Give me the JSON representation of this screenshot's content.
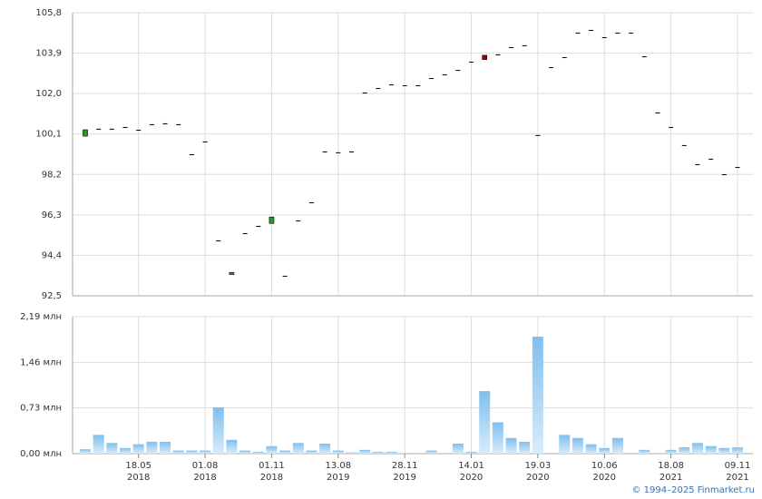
{
  "chart_data": [
    {
      "type": "candlestick",
      "open": [
        100.0,
        100.35,
        100.35,
        100.43,
        100.3,
        100.56,
        100.6,
        100.56,
        99.15,
        99.75,
        95.1,
        93.5,
        95.44,
        95.78,
        95.9,
        93.44,
        96.04,
        96.89,
        99.28,
        99.24,
        99.28,
        102.05,
        102.26,
        102.43,
        102.39,
        102.39,
        102.73,
        102.9,
        103.11,
        103.5,
        103.8,
        103.84,
        104.18,
        104.27,
        100.05,
        103.24,
        103.71,
        104.86,
        104.99,
        104.65,
        104.86,
        104.86,
        103.75,
        101.11,
        100.43,
        99.58,
        98.68,
        98.94,
        98.21,
        98.55
      ],
      "close": [
        100.3,
        100.35,
        100.35,
        100.43,
        100.3,
        100.56,
        100.6,
        100.56,
        99.15,
        99.75,
        95.1,
        93.6,
        95.44,
        95.78,
        96.2,
        93.44,
        96.04,
        96.89,
        99.28,
        99.24,
        99.28,
        102.05,
        102.26,
        102.43,
        102.39,
        102.39,
        102.73,
        102.9,
        103.11,
        103.5,
        103.6,
        103.84,
        104.18,
        104.27,
        100.05,
        103.24,
        103.71,
        104.86,
        104.99,
        104.65,
        104.86,
        104.86,
        103.75,
        101.11,
        100.43,
        99.58,
        98.68,
        98.94,
        98.21,
        98.55
      ],
      "up_color": "#1f9e1f",
      "down_color": "#a00000",
      "flat_color": "#000000",
      "ylim": [
        92.5,
        105.8
      ],
      "yticks": [
        {
          "value": 92.5,
          "label": "92,5"
        },
        {
          "value": 94.4,
          "label": "94,4"
        },
        {
          "value": 96.3,
          "label": "96,3"
        },
        {
          "value": 98.2,
          "label": "98,2"
        },
        {
          "value": 100.1,
          "label": "100,1"
        },
        {
          "value": 102.0,
          "label": "102,0"
        },
        {
          "value": 103.9,
          "label": "103,9"
        },
        {
          "value": 105.8,
          "label": "105,8"
        }
      ],
      "grid": true
    },
    {
      "type": "bar",
      "categories": [
        null,
        null,
        null,
        null,
        "18.05\n2018",
        null,
        null,
        null,
        null,
        "01.08\n2018",
        null,
        null,
        null,
        null,
        "01.11\n2018",
        null,
        null,
        null,
        null,
        "13.08\n2019",
        null,
        null,
        null,
        null,
        "28.11\n2019",
        null,
        null,
        null,
        null,
        "14.01\n2020",
        null,
        null,
        null,
        null,
        "19.03\n2020",
        null,
        null,
        null,
        null,
        "10.06\n2020",
        null,
        null,
        null,
        null,
        "18.08\n2021",
        null,
        null,
        null,
        null,
        "09.11\n2021"
      ],
      "values": [
        0.07,
        0.3,
        0.17,
        0.09,
        0.15,
        0.19,
        0.19,
        0.05,
        0.05,
        0.05,
        0.74,
        0.22,
        0.05,
        0.03,
        0.12,
        0.05,
        0.17,
        0.05,
        0.16,
        0.05,
        0.02,
        0.06,
        0.03,
        0.03,
        0.01,
        0.01,
        0.05,
        0.01,
        0.16,
        0.03,
        1.0,
        0.5,
        0.25,
        0.19,
        1.87,
        0.01,
        0.3,
        0.25,
        0.15,
        0.09,
        0.25,
        0.01,
        0.06,
        0.01,
        0.06,
        0.1,
        0.17,
        0.12,
        0.09,
        0.1
      ],
      "color": "#7fbfee",
      "ylim": [
        0,
        2.19
      ],
      "yticks": [
        {
          "value": 0,
          "label": "0,00 млн"
        },
        {
          "value": 0.73,
          "label": "0,73 млн"
        },
        {
          "value": 1.46,
          "label": "1,46 млн"
        },
        {
          "value": 2.19,
          "label": "2,19 млн"
        }
      ],
      "grid": true
    }
  ],
  "footer": "© 1994–2025 Finmarket.ru"
}
